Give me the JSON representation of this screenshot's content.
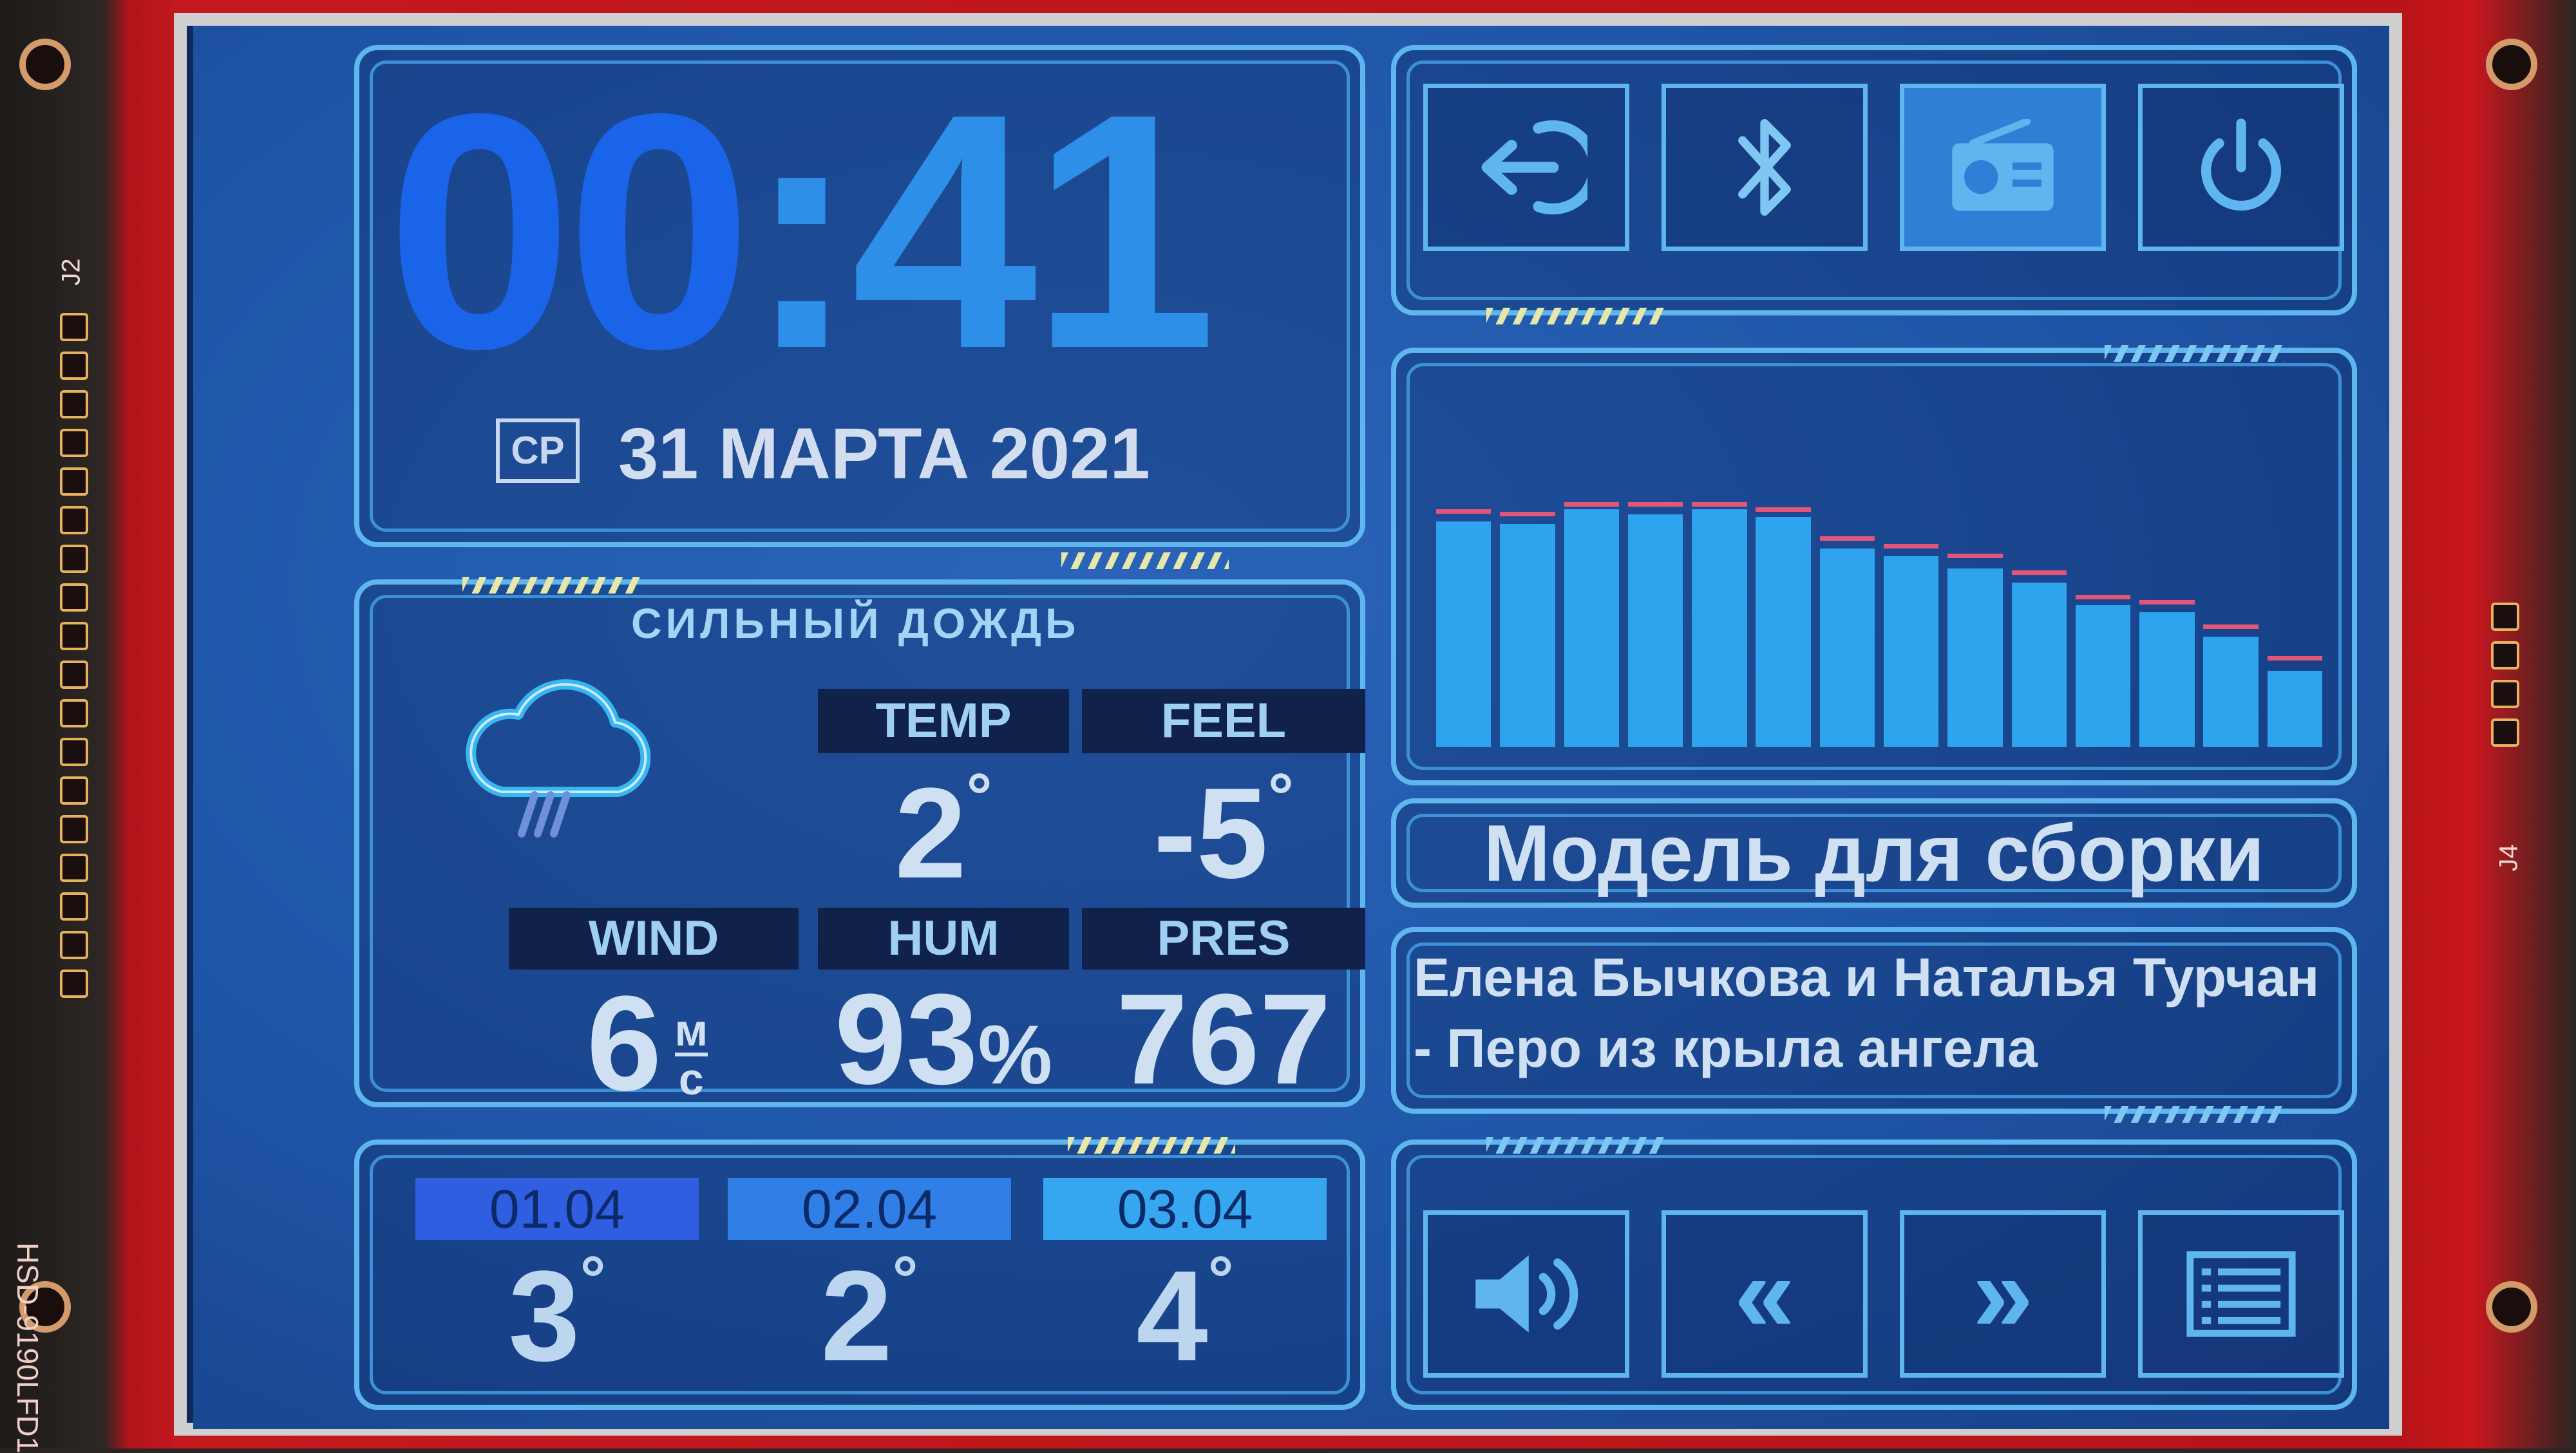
{
  "clock": {
    "hours": "00",
    "colon": ":",
    "minutes": "41"
  },
  "date": {
    "weekday": "СР",
    "text": "31 МАРТА 2021"
  },
  "weather": {
    "condition": "СИЛЬНЫЙ ДОЖДЬ",
    "icon": "cloud-rain-icon",
    "temp": {
      "label": "TEMP",
      "value": "2",
      "unit": "°"
    },
    "feel": {
      "label": "FEEL",
      "value": "-5",
      "unit": "°"
    },
    "wind": {
      "label": "WIND",
      "value": "6",
      "unit_top": "м",
      "unit_bottom": "с"
    },
    "hum": {
      "label": "HUM",
      "value": "93",
      "unit": "%"
    },
    "pres": {
      "label": "PRES",
      "value": "767"
    }
  },
  "forecast": [
    {
      "date": "01.04",
      "temp": "3",
      "unit": "°",
      "color": "#2f5fe0"
    },
    {
      "date": "02.04",
      "temp": "2",
      "unit": "°",
      "color": "#2f7fe6"
    },
    {
      "date": "03.04",
      "temp": "4",
      "unit": "°",
      "color": "#35a6ef"
    }
  ],
  "top_buttons": [
    {
      "icon": "login-icon"
    },
    {
      "icon": "bluetooth-icon"
    },
    {
      "icon": "radio-icon",
      "active": true
    },
    {
      "icon": "power-icon"
    }
  ],
  "equalizer": {
    "levels": [
      0.92,
      0.91,
      0.97,
      0.95,
      0.97,
      0.94,
      0.81,
      0.78,
      0.73,
      0.67,
      0.58,
      0.55,
      0.45,
      0.31
    ],
    "peaks": [
      0.97,
      0.96,
      1.0,
      1.0,
      1.0,
      0.98,
      0.86,
      0.83,
      0.79,
      0.72,
      0.62,
      0.6,
      0.5,
      0.37
    ],
    "bar_color": "#2ea3ee",
    "peak_color": "#e45678"
  },
  "player": {
    "title": "Модель для сборки",
    "artist_line1": "Елена Бычкова и Наталья Турчан",
    "artist_line2": "- Перо из крыла ангела"
  },
  "bottom_buttons": [
    {
      "icon": "volume-icon"
    },
    {
      "icon": "rewind-icon",
      "glyph": "«"
    },
    {
      "icon": "forward-icon",
      "glyph": "»"
    },
    {
      "icon": "playlist-icon"
    }
  ],
  "board": {
    "label_left": "J2",
    "label_right": "J4",
    "model": "HSD-9190LFD1"
  }
}
